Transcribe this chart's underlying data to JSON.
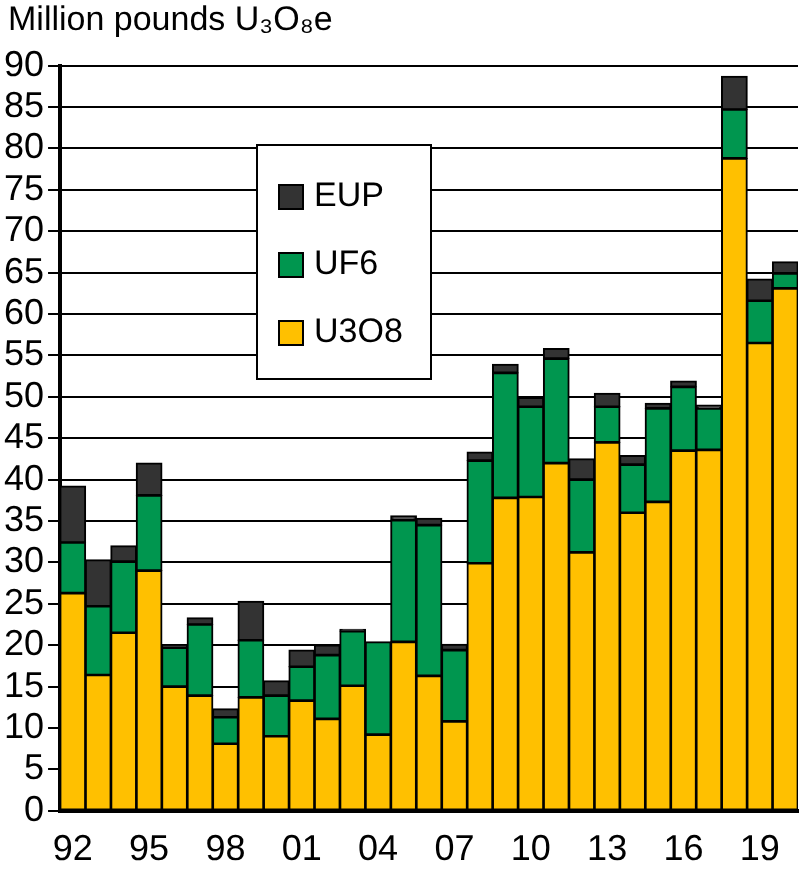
{
  "chart_data": {
    "type": "bar",
    "stacked": true,
    "ylabel": "Million pounds U₃O₈e",
    "categories": [
      "92",
      null,
      null,
      "95",
      null,
      null,
      "98",
      null,
      null,
      "01",
      null,
      null,
      "04",
      null,
      null,
      "07",
      null,
      null,
      "10",
      null,
      null,
      "13",
      null,
      null,
      "16",
      null,
      null,
      "19",
      null
    ],
    "series": [
      {
        "name": "U3O8",
        "color": "#ffc000",
        "values": [
          26.3,
          16.4,
          21.5,
          29.0,
          15.0,
          13.9,
          8.1,
          13.7,
          9.0,
          13.3,
          11.1,
          15.1,
          9.2,
          20.4,
          16.3,
          10.8,
          29.9,
          37.8,
          37.9,
          42.0,
          31.2,
          44.5,
          36.0,
          37.3,
          43.5,
          43.6,
          78.8,
          56.5,
          63.1
        ]
      },
      {
        "name": "UF6",
        "color": "#00964f",
        "values": [
          6.1,
          8.3,
          8.6,
          9.1,
          4.7,
          8.6,
          3.2,
          6.9,
          4.9,
          4.1,
          7.7,
          6.6,
          11.2,
          14.7,
          18.2,
          8.6,
          12.4,
          15.1,
          10.9,
          12.6,
          8.8,
          4.3,
          5.8,
          11.3,
          7.7,
          5.0,
          5.9,
          5.1,
          1.8
        ]
      },
      {
        "name": "EUP",
        "color": "#333333",
        "values": [
          6.8,
          5.6,
          1.9,
          3.9,
          0.3,
          0.8,
          1.0,
          4.7,
          1.8,
          2.0,
          1.2,
          0.2,
          0,
          0.5,
          0.8,
          0.7,
          1.0,
          1.0,
          1.1,
          1.2,
          2.5,
          1.6,
          1.1,
          0.6,
          0.7,
          0.4,
          4.0,
          2.6,
          1.4
        ]
      }
    ],
    "ylim": [
      0,
      90
    ],
    "yticks": [
      0,
      5,
      10,
      15,
      20,
      25,
      30,
      35,
      40,
      45,
      50,
      55,
      60,
      65,
      70,
      75,
      80,
      85,
      90
    ],
    "grid": "y",
    "legend": "top left"
  }
}
